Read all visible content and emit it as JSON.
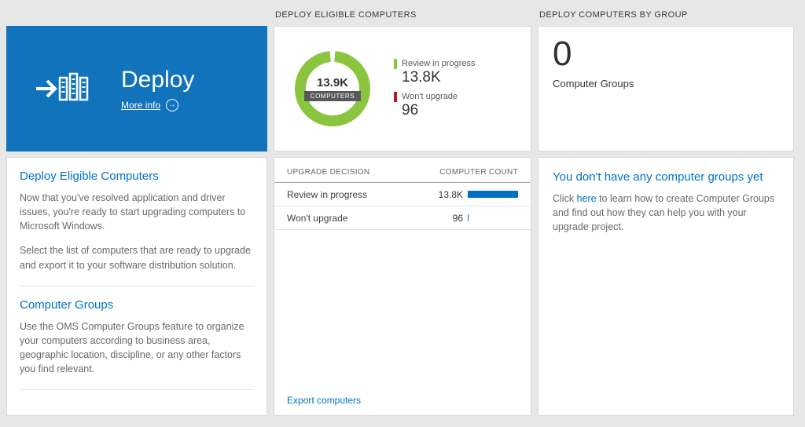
{
  "colors": {
    "tile_blue": "#1173bc",
    "accent_blue": "#0072c6",
    "green": "#8bc53f",
    "red": "#b71c1c",
    "bar_blue": "#0072c6"
  },
  "columns": {
    "left": {
      "tile": {
        "title": "Deploy",
        "more_info": "More info",
        "more_info_icon": "→"
      },
      "sections": [
        {
          "heading": "Deploy Eligible Computers",
          "paragraphs": [
            "Now that you've resolved application and driver issues, you're ready to start upgrading computers to Microsoft Windows.",
            "Select the list of computers that are ready to upgrade and export it to your software distribution solution."
          ]
        },
        {
          "heading": "Computer Groups",
          "paragraphs": [
            "Use the OMS Computer Groups feature to organize your computers according to business area, geographic location, discipline, or any other factors you find relevant."
          ]
        }
      ]
    },
    "middle": {
      "header": "DEPLOY ELIGIBLE COMPUTERS",
      "donut": {
        "center_value": "13.9K",
        "center_label": "COMPUTERS",
        "legend": [
          {
            "label": "Review in progress",
            "value": "13.8K",
            "color": "#8bc53f"
          },
          {
            "label": "Won't upgrade",
            "value": "96",
            "color": "#b71c1c"
          }
        ]
      },
      "table": {
        "columns": [
          "UPGRADE DECISION",
          "COMPUTER COUNT"
        ],
        "rows": [
          {
            "label": "Review in progress",
            "value": "13.8K",
            "bar_pct": 100
          },
          {
            "label": "Won't upgrade",
            "value": "96",
            "bar_pct": 2
          }
        ]
      },
      "export_link": "Export computers"
    },
    "right": {
      "header": "DEPLOY COMPUTERS BY GROUP",
      "count": "0",
      "count_label": "Computer Groups",
      "empty": {
        "heading": "You don't have any computer groups yet",
        "text_before": "Click ",
        "link": "here",
        "text_after": " to learn how to create Computer Groups and find out how they can help you with your upgrade project."
      }
    }
  }
}
